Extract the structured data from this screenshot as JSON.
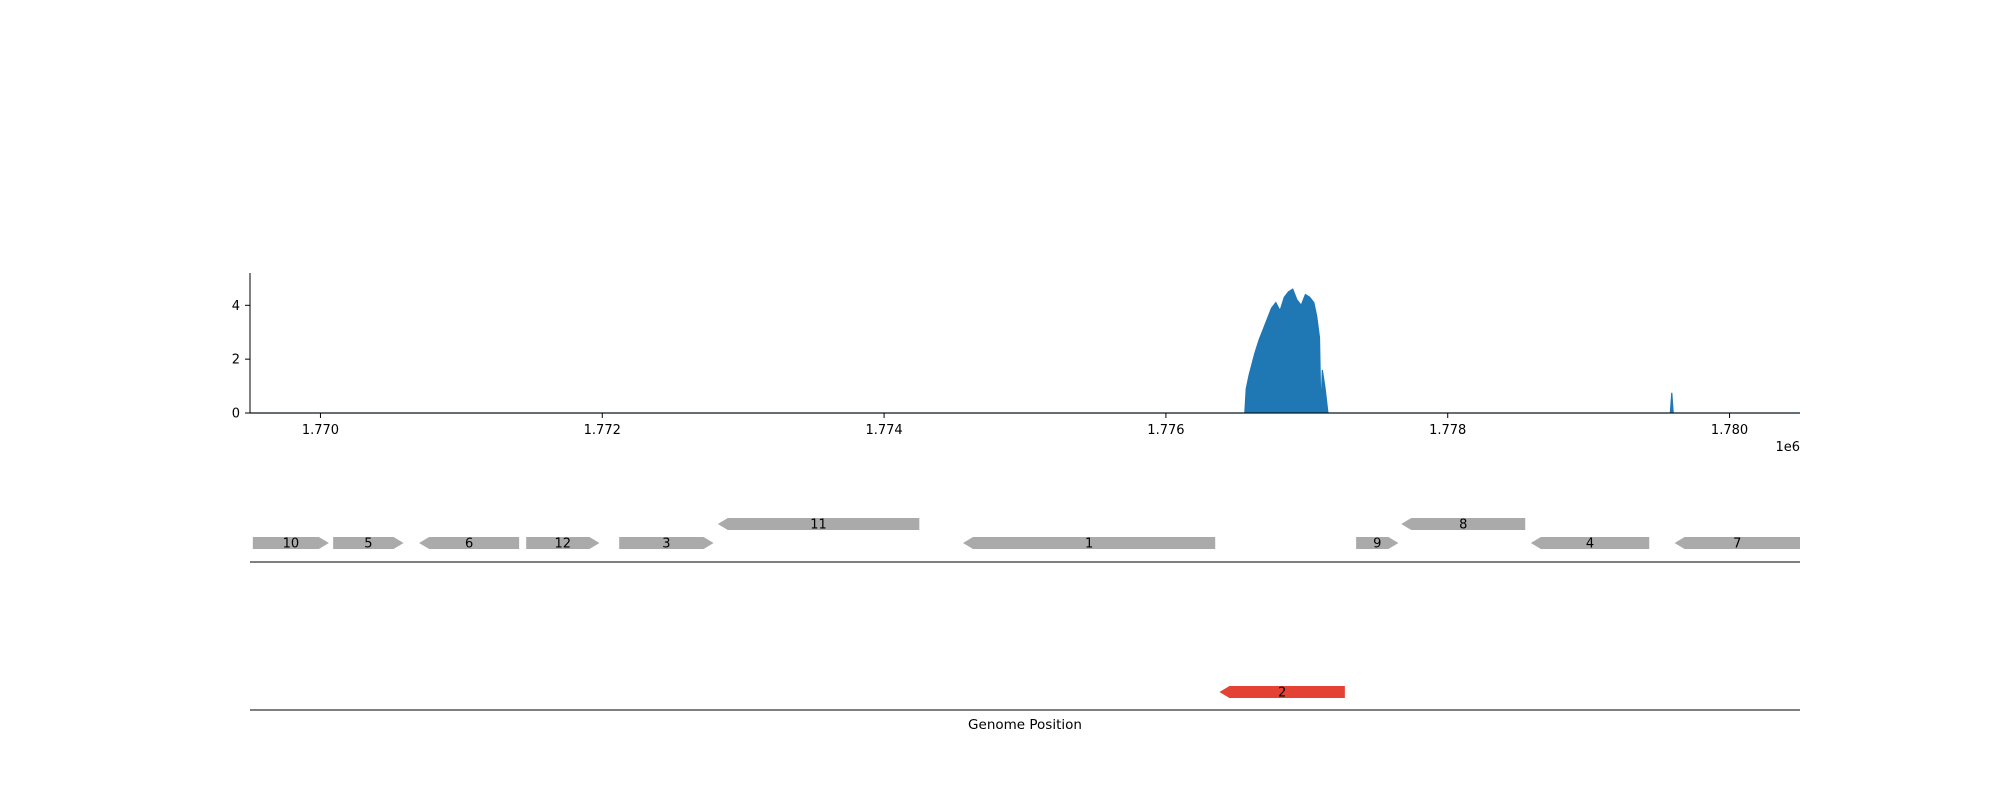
{
  "chart_data": {
    "type": "area",
    "title": "",
    "xlabel": "Genome Position",
    "ylabel": "",
    "axis_offset_label": "1e6",
    "xlim": [
      1769500,
      1780500
    ],
    "ylim": [
      0,
      5.2
    ],
    "x_ticks": [
      1770000,
      1772000,
      1774000,
      1776000,
      1778000,
      1780000
    ],
    "x_tick_labels": [
      "1.770",
      "1.772",
      "1.774",
      "1.776",
      "1.778",
      "1.780"
    ],
    "y_ticks": [
      0,
      2,
      4
    ],
    "y_tick_labels": [
      "0",
      "2",
      "4"
    ],
    "grid": false,
    "series_color": "#1f77b4",
    "coverage": {
      "x": [
        1769500,
        1776560,
        1776570,
        1776590,
        1776610,
        1776630,
        1776660,
        1776690,
        1776720,
        1776750,
        1776780,
        1776810,
        1776840,
        1776870,
        1776900,
        1776930,
        1776960,
        1776990,
        1777020,
        1777050,
        1777070,
        1777090,
        1777100,
        1777110,
        1777130,
        1777150,
        1777160,
        1779580,
        1779590,
        1779600,
        1780500
      ],
      "y": [
        0,
        0,
        0.9,
        1.4,
        1.8,
        2.2,
        2.7,
        3.1,
        3.5,
        3.9,
        4.1,
        3.8,
        4.3,
        4.5,
        4.6,
        4.2,
        4.0,
        4.4,
        4.3,
        4.1,
        3.6,
        2.8,
        0,
        1.6,
        0.9,
        0,
        0,
        0,
        0.75,
        0,
        0
      ]
    },
    "gene_tracks": [
      {
        "color": "#aaaaaa",
        "genes": [
          {
            "label": "10",
            "start": 1769520,
            "end": 1770060,
            "strand": "+",
            "row": 0
          },
          {
            "label": "5",
            "start": 1770090,
            "end": 1770590,
            "strand": "+",
            "row": 0
          },
          {
            "label": "6",
            "start": 1770700,
            "end": 1771410,
            "strand": "-",
            "row": 0
          },
          {
            "label": "12",
            "start": 1771460,
            "end": 1771980,
            "strand": "+",
            "row": 0
          },
          {
            "label": "3",
            "start": 1772120,
            "end": 1772790,
            "strand": "+",
            "row": 0
          },
          {
            "label": "11",
            "start": 1772820,
            "end": 1774250,
            "strand": "-",
            "row": 1
          },
          {
            "label": "1",
            "start": 1774560,
            "end": 1776350,
            "strand": "-",
            "row": 0
          },
          {
            "label": "9",
            "start": 1777350,
            "end": 1777650,
            "strand": "+",
            "row": 0
          },
          {
            "label": "8",
            "start": 1777670,
            "end": 1778550,
            "strand": "-",
            "row": 1
          },
          {
            "label": "4",
            "start": 1778590,
            "end": 1779430,
            "strand": "-",
            "row": 0
          },
          {
            "label": "7",
            "start": 1779610,
            "end": 1780500,
            "strand": "-",
            "row": 0
          }
        ]
      },
      {
        "color": "#e34234",
        "genes": [
          {
            "label": "2",
            "start": 1776380,
            "end": 1777270,
            "strand": "-",
            "row": 0
          }
        ]
      }
    ]
  }
}
